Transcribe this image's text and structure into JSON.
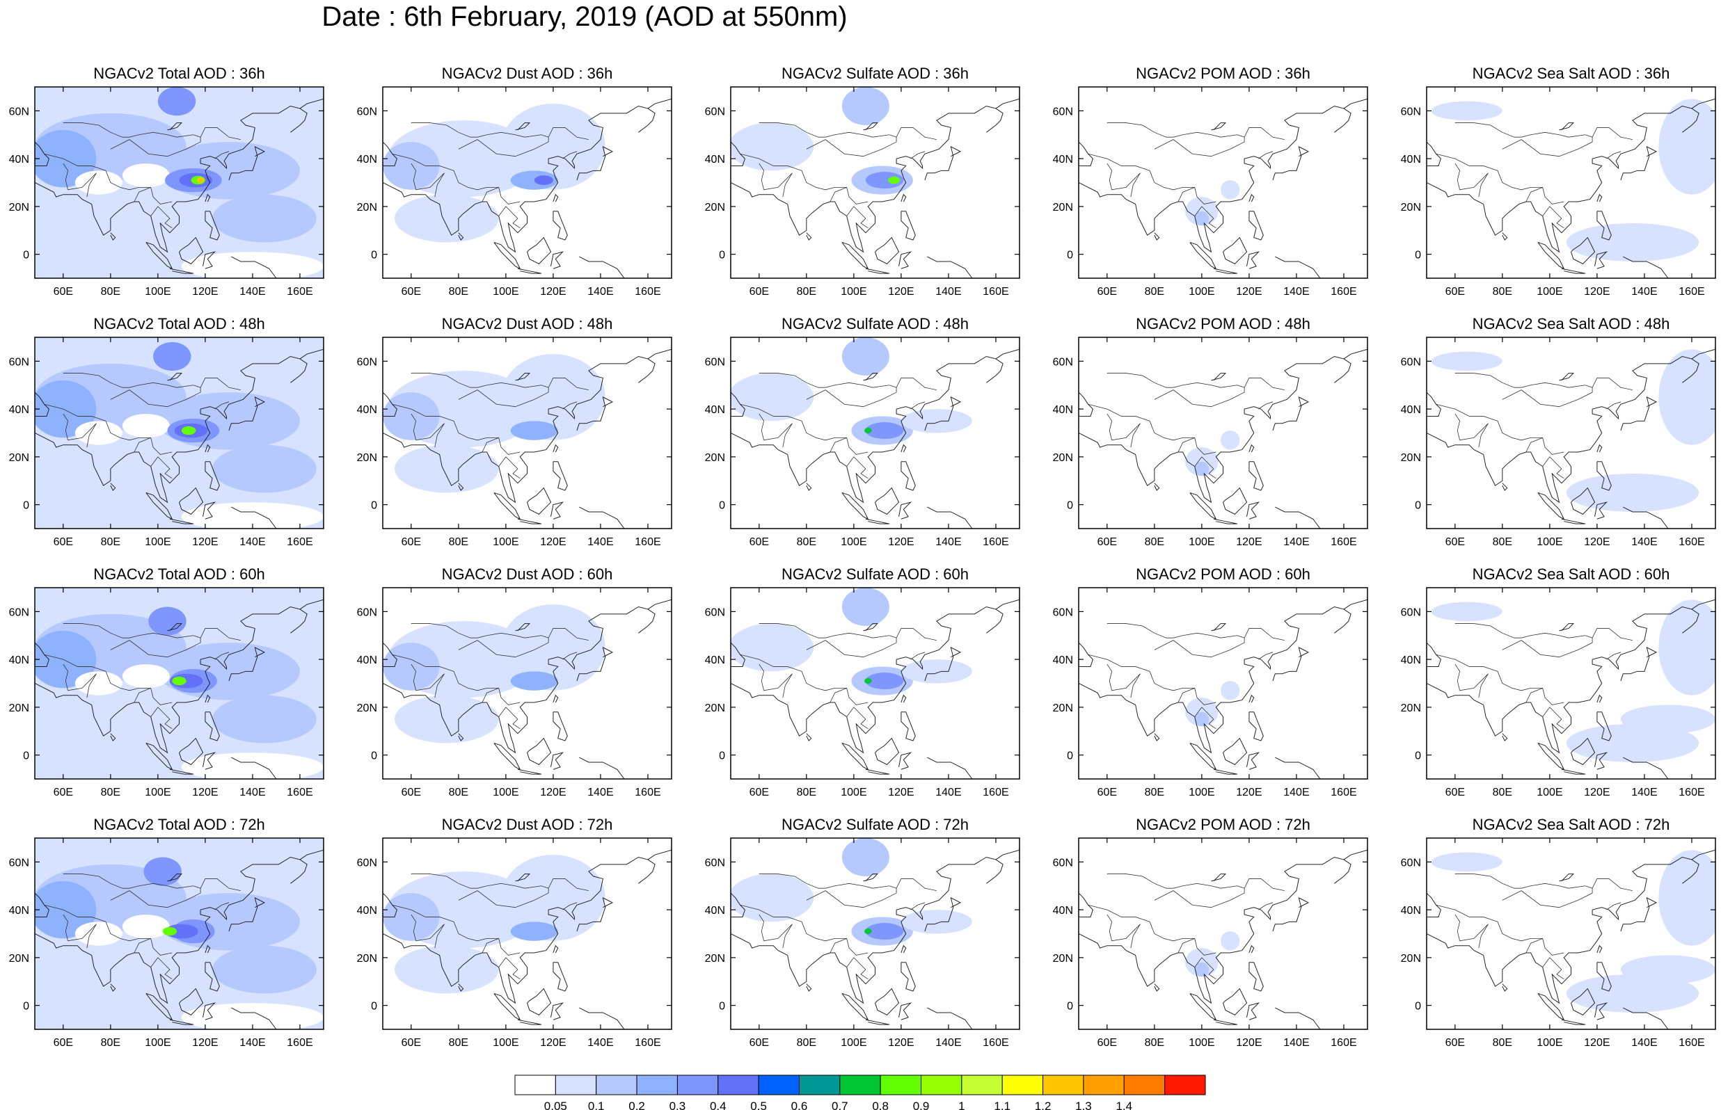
{
  "title": "Date : 6th February, 2019 (AOD at 550nm)",
  "x_ticks": [
    "60E",
    "80E",
    "100E",
    "120E",
    "140E",
    "160E"
  ],
  "y_ticks": [
    "60N",
    "40N",
    "20N",
    "0"
  ],
  "map_extent": {
    "lon": [
      48,
      170
    ],
    "lat": [
      -10,
      70
    ]
  },
  "panels": [
    [
      {
        "title": "NGACv2 Total AOD : 36h",
        "species": "total",
        "hour": 36
      },
      {
        "title": "NGACv2 Dust AOD : 36h",
        "species": "dust",
        "hour": 36
      },
      {
        "title": "NGACv2 Sulfate AOD : 36h",
        "species": "sulfate",
        "hour": 36
      },
      {
        "title": "NGACv2 POM AOD : 36h",
        "species": "pom",
        "hour": 36
      },
      {
        "title": "NGACv2 Sea Salt AOD : 36h",
        "species": "seasalt",
        "hour": 36
      }
    ],
    [
      {
        "title": "NGACv2 Total AOD : 48h",
        "species": "total",
        "hour": 48
      },
      {
        "title": "NGACv2 Dust AOD : 48h",
        "species": "dust",
        "hour": 48
      },
      {
        "title": "NGACv2 Sulfate AOD : 48h",
        "species": "sulfate",
        "hour": 48
      },
      {
        "title": "NGACv2 POM AOD : 48h",
        "species": "pom",
        "hour": 48
      },
      {
        "title": "NGACv2 Sea Salt AOD : 48h",
        "species": "seasalt",
        "hour": 48
      }
    ],
    [
      {
        "title": "NGACv2 Total AOD : 60h",
        "species": "total",
        "hour": 60
      },
      {
        "title": "NGACv2 Dust AOD : 60h",
        "species": "dust",
        "hour": 60
      },
      {
        "title": "NGACv2 Sulfate AOD : 60h",
        "species": "sulfate",
        "hour": 60
      },
      {
        "title": "NGACv2 POM AOD : 60h",
        "species": "pom",
        "hour": 60
      },
      {
        "title": "NGACv2 Sea Salt AOD : 60h",
        "species": "seasalt",
        "hour": 60
      }
    ],
    [
      {
        "title": "NGACv2 Total AOD : 72h",
        "species": "total",
        "hour": 72
      },
      {
        "title": "NGACv2 Dust AOD : 72h",
        "species": "dust",
        "hour": 72
      },
      {
        "title": "NGACv2 Sulfate AOD : 72h",
        "species": "sulfate",
        "hour": 72
      },
      {
        "title": "NGACv2 POM AOD : 72h",
        "species": "pom",
        "hour": 72
      },
      {
        "title": "NGACv2 Sea Salt  AOD : 72h",
        "species": "seasalt",
        "hour": 72
      }
    ]
  ],
  "colorbar": {
    "colors": [
      "#ffffff",
      "#d6e2ff",
      "#b5c9ff",
      "#8fb2ff",
      "#7f96ff",
      "#6370f8",
      "#0063ff",
      "#009696",
      "#00c633",
      "#63ff00",
      "#96ff00",
      "#c6ff33",
      "#ffff00",
      "#ffc600",
      "#ffa000",
      "#ff7c00",
      "#ff1900"
    ],
    "labels": [
      "0.05",
      "0.1",
      "0.2",
      "0.3",
      "0.4",
      "0.5",
      "0.6",
      "0.7",
      "0.8",
      "0.9",
      "1",
      "1.1",
      "1.2",
      "1.3",
      "1.4"
    ]
  }
}
